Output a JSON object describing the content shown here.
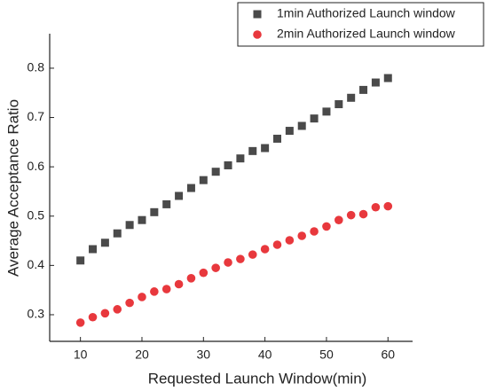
{
  "chart_data": {
    "type": "scatter",
    "x_label": "Requested Launch Window(min)",
    "y_label": "Average Acceptance Ratio",
    "x": [
      10,
      12,
      14,
      16,
      18,
      20,
      22,
      24,
      26,
      28,
      30,
      32,
      34,
      36,
      38,
      40,
      42,
      44,
      46,
      48,
      50,
      52,
      54,
      56,
      58,
      60
    ],
    "series": [
      {
        "name": "1min Authorized Launch window",
        "color": "#4a4a4a",
        "marker": "square",
        "values": [
          0.41,
          0.433,
          0.446,
          0.465,
          0.482,
          0.492,
          0.508,
          0.524,
          0.541,
          0.557,
          0.573,
          0.59,
          0.603,
          0.617,
          0.632,
          0.638,
          0.657,
          0.673,
          0.683,
          0.698,
          0.712,
          0.727,
          0.74,
          0.756,
          0.771,
          0.78
        ]
      },
      {
        "name": "2min Authorized Launch window",
        "color": "#e8383d",
        "marker": "circle",
        "values": [
          0.284,
          0.295,
          0.303,
          0.311,
          0.324,
          0.336,
          0.347,
          0.352,
          0.362,
          0.374,
          0.385,
          0.395,
          0.406,
          0.413,
          0.422,
          0.433,
          0.442,
          0.451,
          0.46,
          0.469,
          0.479,
          0.492,
          0.502,
          0.504,
          0.518,
          0.52
        ]
      }
    ],
    "xlim": [
      5,
      64
    ],
    "xticks": [
      10,
      20,
      30,
      40,
      50,
      60
    ],
    "ylim": [
      0.246,
      0.87
    ],
    "yticks": [
      0.3,
      0.4,
      0.5,
      0.6,
      0.7,
      0.8
    ],
    "legend": "top-right"
  }
}
